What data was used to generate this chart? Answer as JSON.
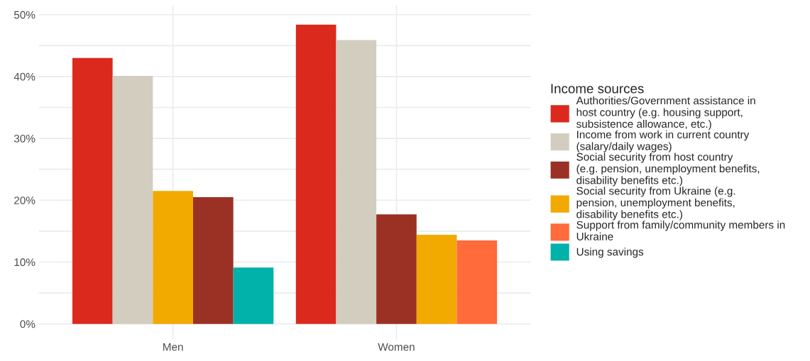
{
  "chart_data": {
    "type": "bar",
    "categories": [
      "Men",
      "Women"
    ],
    "series": [
      {
        "name": "Authorities/Government assistance in\nhost country (e.g. housing support,\nsubsistence allowance, etc.)",
        "color": "#dc291e",
        "values": [
          43.0,
          48.4
        ]
      },
      {
        "name": "Income from work in current country\n(salary/daily wages)",
        "color": "#d3cdbf",
        "values": [
          40.1,
          45.9
        ]
      },
      {
        "name": "Social security from host country\n(e.g. pension, unemployment benefits,\ndisability benefits etc.)",
        "color": "#9b3124",
        "values": [
          20.5,
          17.7
        ]
      },
      {
        "name": "Social security from Ukraine (e.g.\npension, unemployment benefits,\ndisability benefits etc.)",
        "color": "#f2a900",
        "values": [
          21.5,
          14.4
        ]
      },
      {
        "name": "Support from family/community members in\nUkraine",
        "color": "#ff6b3a",
        "values": [
          null,
          13.5
        ]
      },
      {
        "name": "Using savings",
        "color": "#00b2a9",
        "values": [
          9.1,
          null
        ]
      }
    ],
    "legend_title": "Income sources",
    "legend": "right",
    "grid": true,
    "ylim": [
      -2.5,
      51.5
    ],
    "yticks": [
      {
        "value": 0,
        "label": "0%"
      },
      {
        "value": 5,
        "label": null
      },
      {
        "value": 10,
        "label": "10%"
      },
      {
        "value": 15,
        "label": null
      },
      {
        "value": 20,
        "label": "20%"
      },
      {
        "value": 25,
        "label": null
      },
      {
        "value": 30,
        "label": "30%"
      },
      {
        "value": 35,
        "label": null
      },
      {
        "value": 40,
        "label": "40%"
      },
      {
        "value": 45,
        "label": null
      },
      {
        "value": 50,
        "label": "50%"
      }
    ]
  }
}
